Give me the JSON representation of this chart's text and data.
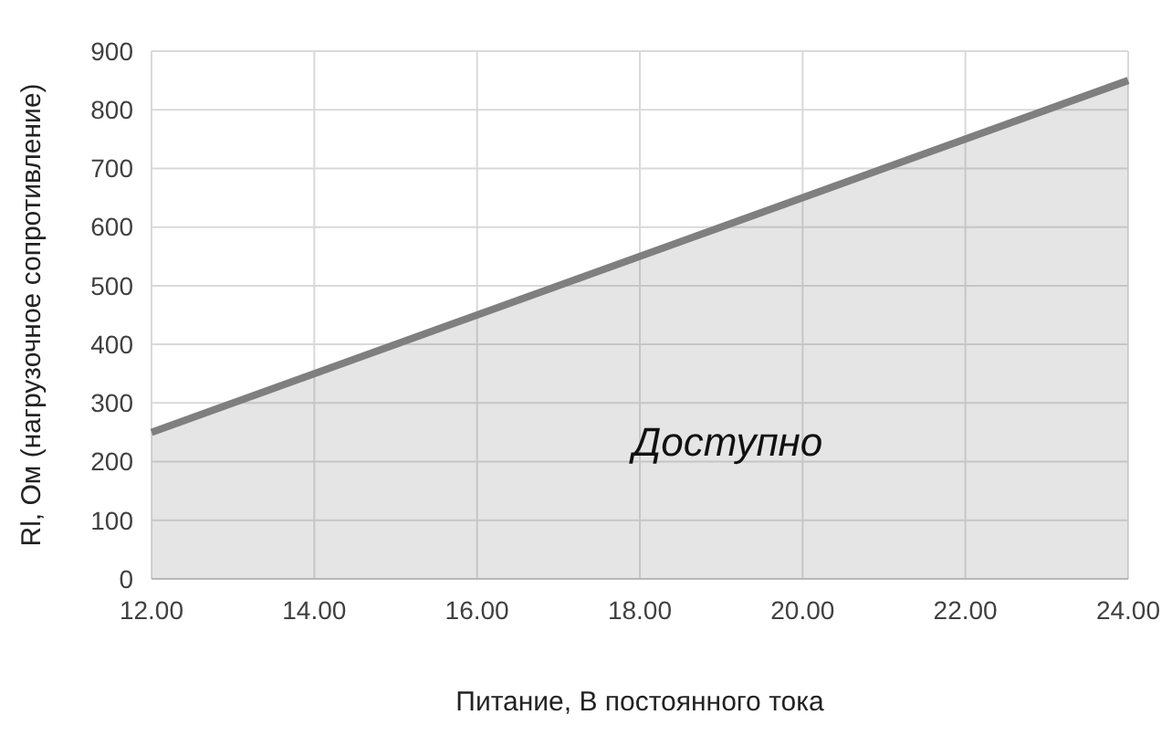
{
  "chart_data": {
    "type": "area",
    "xlabel": "Питание, В постоянного тока",
    "ylabel": "Rl, Ом (нагрузочное сопротивление)",
    "x": [
      12,
      24
    ],
    "series": [
      {
        "color": "#7f7f7f",
        "values": [
          250,
          850
        ]
      }
    ],
    "xlim": [
      12,
      24
    ],
    "ylim": [
      0,
      900
    ],
    "xticks": [
      {
        "value": 12,
        "label": "12.00"
      },
      {
        "value": 14,
        "label": "14.00"
      },
      {
        "value": 16,
        "label": "16.00"
      },
      {
        "value": 18,
        "label": "18.00"
      },
      {
        "value": 20,
        "label": "20.00"
      },
      {
        "value": 22,
        "label": "22.00"
      },
      {
        "value": 24,
        "label": "24.00"
      }
    ],
    "yticks": [
      0,
      100,
      200,
      300,
      400,
      500,
      600,
      700,
      800,
      900
    ],
    "grid": true,
    "annotations": [
      "Доступно"
    ]
  }
}
